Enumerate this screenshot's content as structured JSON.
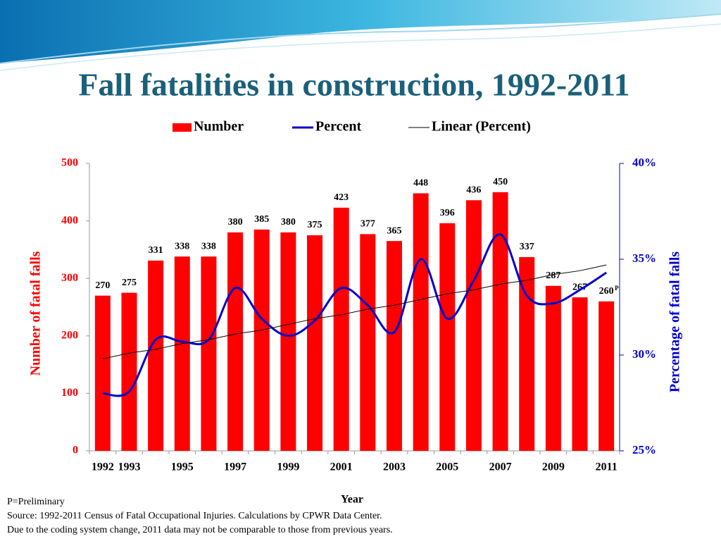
{
  "chart_data": {
    "type": "bar",
    "title": "Fall fatalities in construction, 1992-2011",
    "categories": [
      "1992",
      "1993",
      null,
      "1995",
      null,
      "1997",
      null,
      "1999",
      null,
      "2001",
      null,
      "2003",
      null,
      "2005",
      null,
      "2007",
      null,
      "2009",
      null,
      "2011"
    ],
    "series": [
      {
        "name": "Number",
        "type": "bar",
        "color": "#ff0000",
        "values": [
          270,
          275,
          331,
          338,
          338,
          380,
          385,
          380,
          375,
          423,
          377,
          365,
          448,
          396,
          436,
          450,
          337,
          287,
          267,
          260
        ]
      },
      {
        "name": "Percent",
        "type": "line",
        "axis": "y2",
        "smooth": true,
        "color": "#0000cc",
        "values": [
          28.0,
          28.1,
          30.8,
          30.7,
          30.8,
          33.5,
          31.9,
          31.0,
          31.8,
          33.5,
          32.6,
          31.2,
          35.0,
          31.9,
          33.9,
          36.3,
          33.1,
          32.7,
          33.4,
          34.3
        ]
      },
      {
        "name": "Linear (Percent)",
        "type": "line",
        "axis": "y2",
        "smooth": false,
        "color": "#000000",
        "values": [
          29.8,
          30.1,
          30.3,
          30.6,
          30.8,
          31.1,
          31.3,
          31.6,
          31.9,
          32.1,
          32.4,
          32.6,
          32.9,
          33.2,
          33.4,
          33.7,
          33.9,
          34.2,
          34.4,
          34.7
        ]
      }
    ],
    "last_value_note": "P",
    "ylim": [
      0,
      500
    ],
    "yticks": [
      0,
      100,
      200,
      300,
      400,
      500
    ],
    "y2lim": [
      25,
      40
    ],
    "y2ticks": [
      {
        "value": 25,
        "label": "25%"
      },
      {
        "value": 30,
        "label": "30%"
      },
      {
        "value": 35,
        "label": "35%"
      },
      {
        "value": 40,
        "label": "40%"
      }
    ],
    "y_label": "Number  of fatal falls",
    "y2_label": "Percentage of  fatal falls",
    "x_label": "Year",
    "legend": "top",
    "notes": [
      "P=Preliminary",
      "Source: 1992-2011 Census of Fatal Occupational Injuries. Calculations by CPWR Data Center.",
      "Due to the coding system change, 2011 data may not be comparable to those from previous years."
    ]
  }
}
